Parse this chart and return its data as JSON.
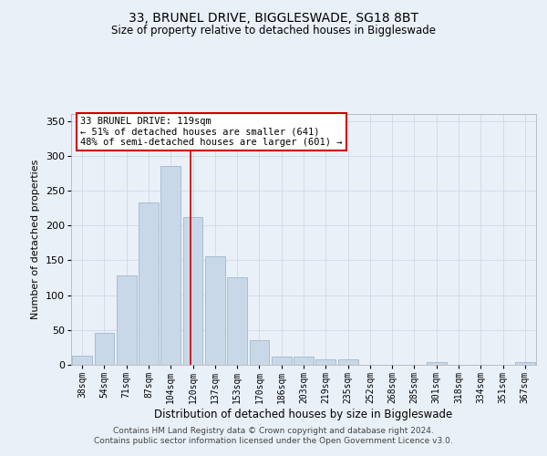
{
  "title_line1": "33, BRUNEL DRIVE, BIGGLESWADE, SG18 8BT",
  "title_line2": "Size of property relative to detached houses in Biggleswade",
  "xlabel": "Distribution of detached houses by size in Biggleswade",
  "ylabel": "Number of detached properties",
  "footer_line1": "Contains HM Land Registry data © Crown copyright and database right 2024.",
  "footer_line2": "Contains public sector information licensed under the Open Government Licence v3.0.",
  "bin_labels": [
    "38sqm",
    "54sqm",
    "71sqm",
    "87sqm",
    "104sqm",
    "120sqm",
    "137sqm",
    "153sqm",
    "170sqm",
    "186sqm",
    "203sqm",
    "219sqm",
    "235sqm",
    "252sqm",
    "268sqm",
    "285sqm",
    "301sqm",
    "318sqm",
    "334sqm",
    "351sqm",
    "367sqm"
  ],
  "bar_values": [
    13,
    46,
    128,
    233,
    285,
    212,
    156,
    126,
    35,
    12,
    12,
    8,
    8,
    0,
    0,
    0,
    4,
    0,
    0,
    0,
    4
  ],
  "bar_color": "#c8d8e8",
  "bar_edge_color": "#a0b8cc",
  "grid_color": "#d0d8e8",
  "background_color": "#eaf0f8",
  "vline_x": 4.88,
  "vline_color": "#cc0000",
  "annotation_text": "33 BRUNEL DRIVE: 119sqm\n← 51% of detached houses are smaller (641)\n48% of semi-detached houses are larger (601) →",
  "annotation_box_color": "#ffffff",
  "annotation_box_edge_color": "#cc0000",
  "ylim": [
    0,
    360
  ],
  "yticks": [
    0,
    50,
    100,
    150,
    200,
    250,
    300,
    350
  ]
}
